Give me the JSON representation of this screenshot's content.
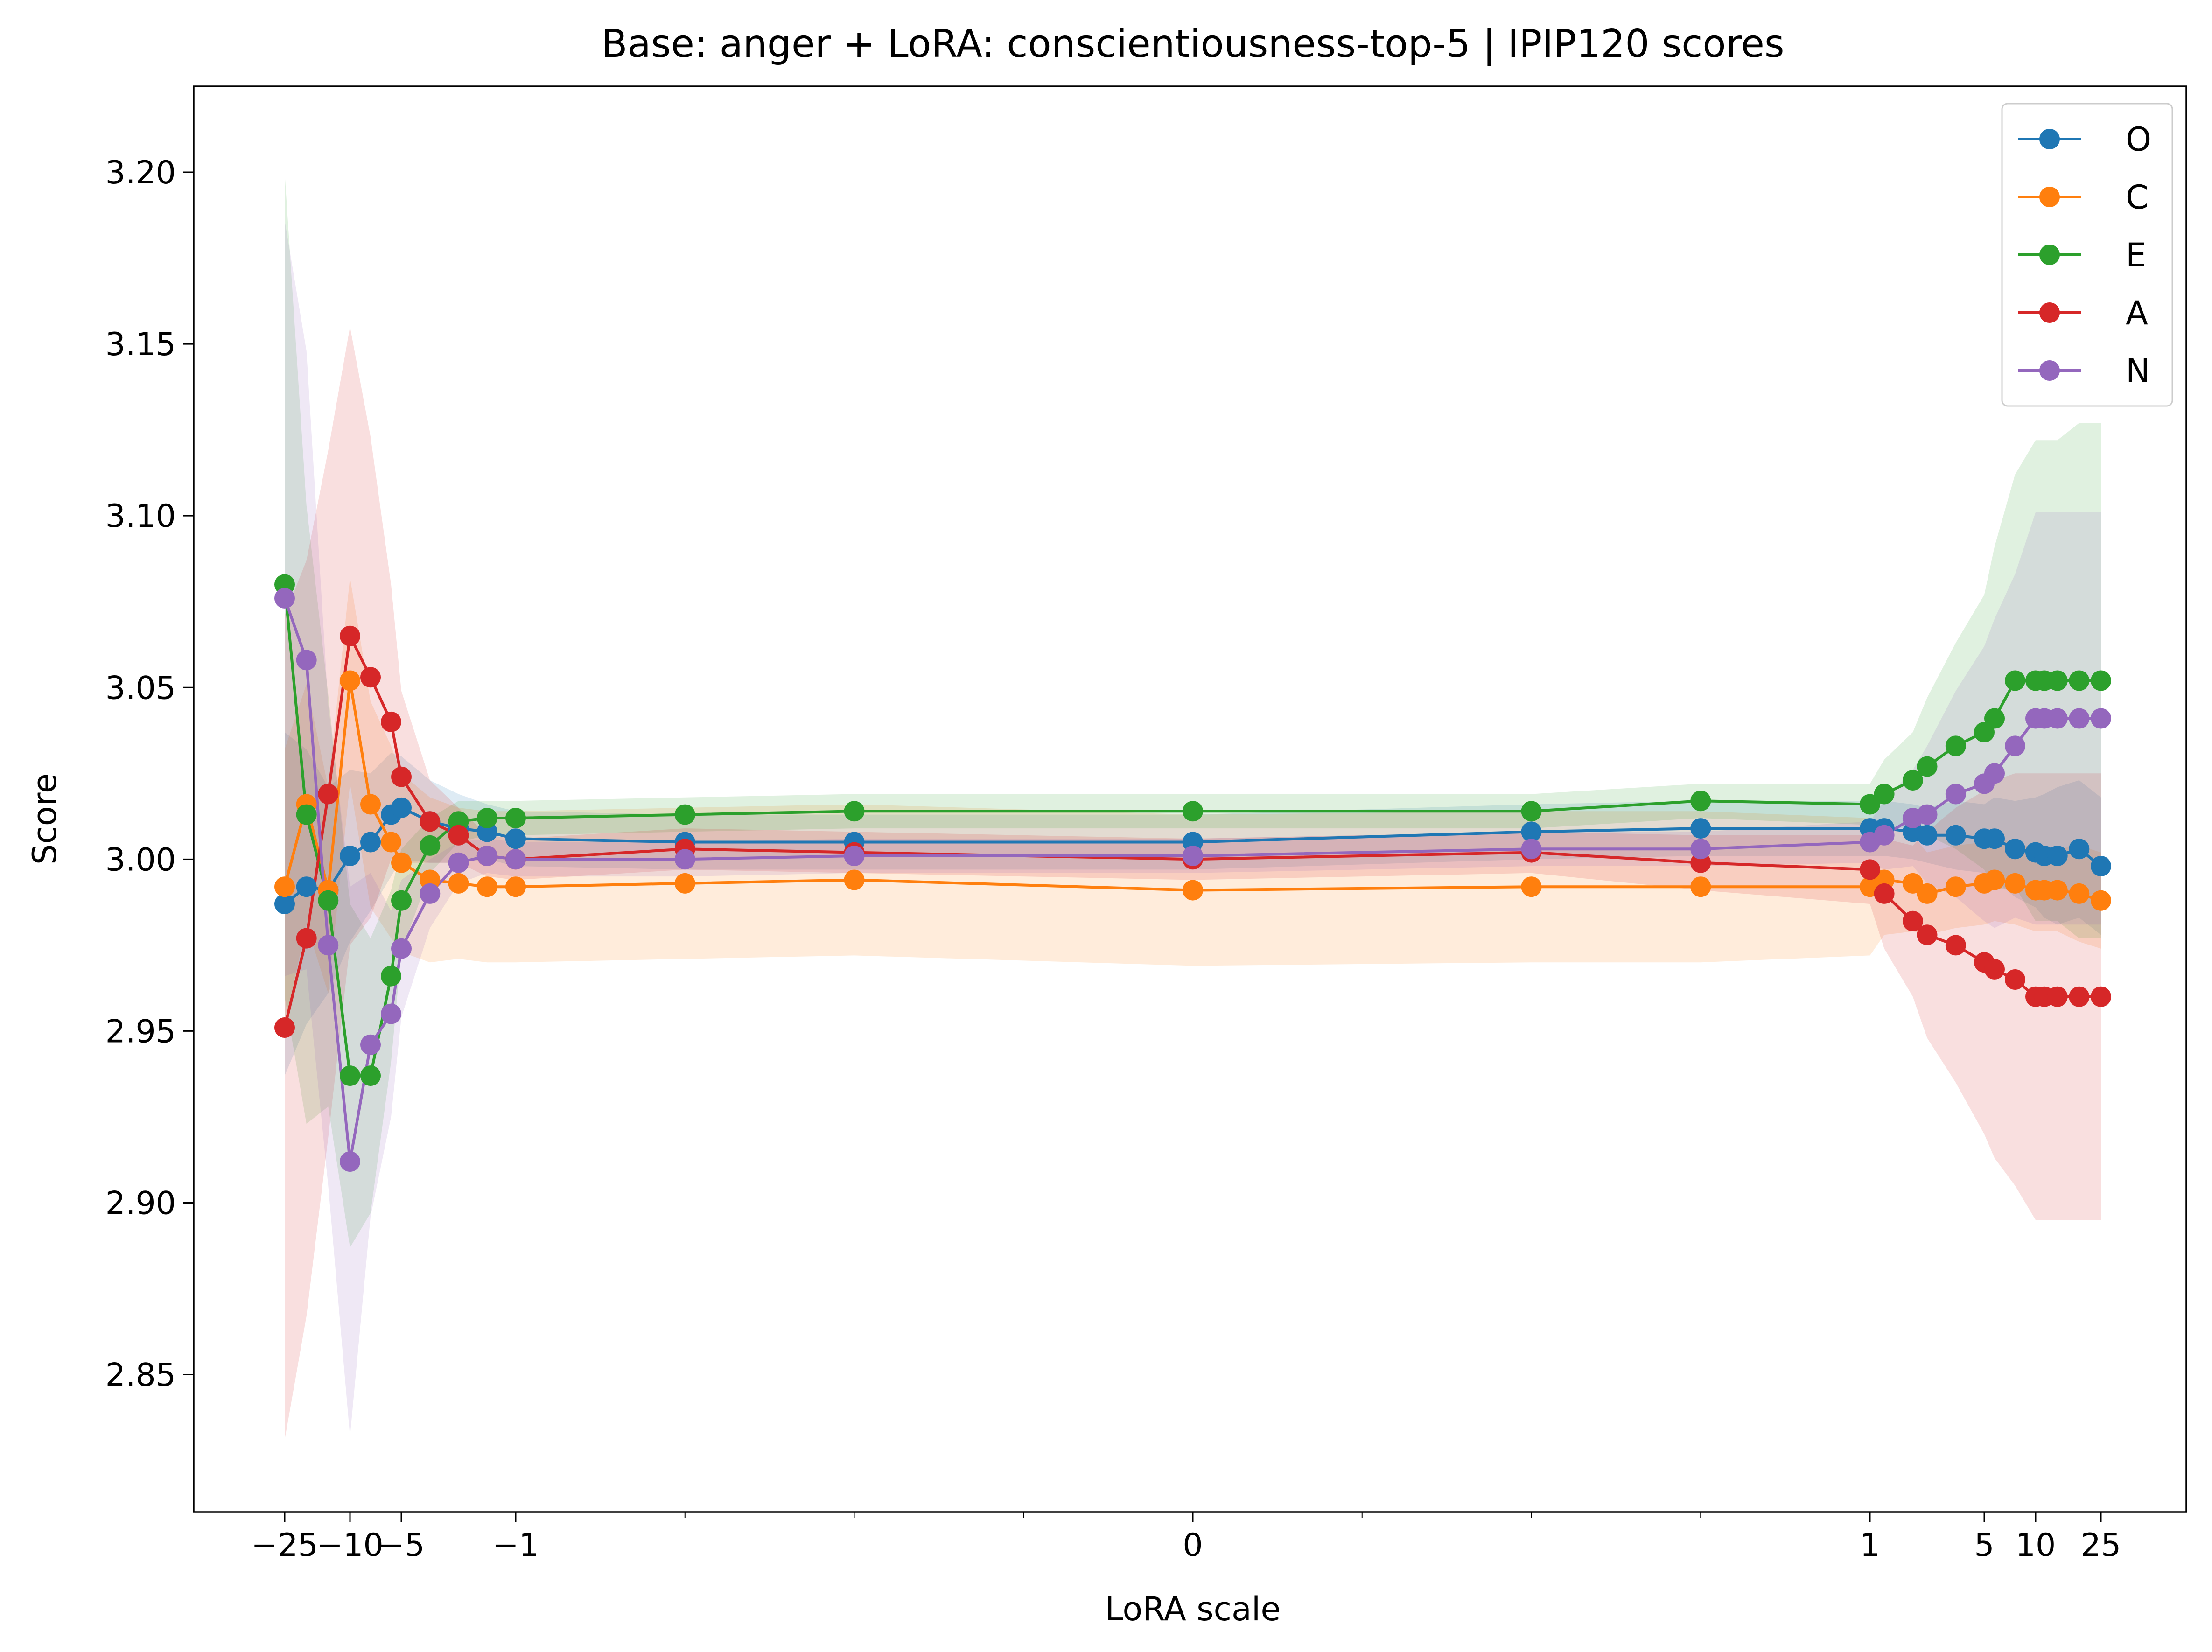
{
  "chart_data": {
    "type": "line",
    "title": "Base: anger + LoRA: conscientiousness-top-5 | IPIP120 scores",
    "xlabel": "LoRA scale",
    "ylabel": "Score",
    "x_scale": "symlog",
    "x_tick_labels": [
      "−25",
      "−10",
      "−5",
      "−1",
      "0",
      "1",
      "5",
      "10",
      "25"
    ],
    "ylim": [
      2.81,
      3.225
    ],
    "y_ticks": [
      "2.85",
      "2.90",
      "2.95",
      "3.00",
      "3.05",
      "3.10",
      "3.15",
      "3.20"
    ],
    "legend_position": "top-right",
    "grid": false,
    "x": [
      -25,
      -20,
      -15,
      -10,
      -8,
      -6,
      -5,
      -4,
      -3,
      -2,
      -1,
      -0.75,
      -0.5,
      0,
      0.5,
      0.75,
      1,
      1.5,
      2.5,
      3,
      4,
      5,
      6,
      8,
      10,
      12,
      15,
      20,
      25
    ],
    "series": [
      {
        "name": "O",
        "color": "#1f77b4",
        "values": [
          2.987,
          2.992,
          2.991,
          3.001,
          3.005,
          3.013,
          3.015,
          3.011,
          3.009,
          3.008,
          3.006,
          3.005,
          3.005,
          3.005,
          3.008,
          3.009,
          3.009,
          3.009,
          3.008,
          3.007,
          3.007,
          3.006,
          3.006,
          3.003,
          3.002,
          3.001,
          3.001,
          3.003,
          2.998
        ],
        "band": [
          0.05,
          0.04,
          0.03,
          0.025,
          0.02,
          0.018,
          0.015,
          0.012,
          0.01,
          0.008,
          0.008,
          0.008,
          0.008,
          0.008,
          0.008,
          0.008,
          0.008,
          0.008,
          0.008,
          0.008,
          0.01,
          0.01,
          0.012,
          0.014,
          0.016,
          0.018,
          0.02,
          0.02,
          0.02
        ]
      },
      {
        "name": "C",
        "color": "#ff7f0e",
        "values": [
          2.992,
          3.016,
          2.991,
          3.052,
          3.016,
          3.005,
          2.999,
          2.994,
          2.993,
          2.992,
          2.992,
          2.993,
          2.994,
          2.991,
          2.992,
          2.992,
          2.992,
          2.994,
          2.993,
          2.99,
          2.992,
          2.993,
          2.994,
          2.993,
          2.991,
          2.991,
          2.991,
          2.99,
          2.988
        ],
        "band": [
          0.04,
          0.035,
          0.03,
          0.03,
          0.03,
          0.028,
          0.026,
          0.024,
          0.022,
          0.022,
          0.022,
          0.022,
          0.022,
          0.022,
          0.022,
          0.022,
          0.02,
          0.016,
          0.014,
          0.012,
          0.012,
          0.012,
          0.012,
          0.012,
          0.012,
          0.012,
          0.012,
          0.014,
          0.014
        ]
      },
      {
        "name": "E",
        "color": "#2ca02c",
        "values": [
          3.08,
          3.013,
          2.988,
          2.937,
          2.937,
          2.966,
          2.988,
          3.004,
          3.011,
          3.012,
          3.012,
          3.013,
          3.014,
          3.014,
          3.014,
          3.017,
          3.016,
          3.019,
          3.023,
          3.027,
          3.033,
          3.037,
          3.041,
          3.052,
          3.052,
          3.052,
          3.052,
          3.052,
          3.052
        ],
        "band": [
          0.12,
          0.09,
          0.06,
          0.05,
          0.04,
          0.025,
          0.015,
          0.008,
          0.006,
          0.005,
          0.005,
          0.005,
          0.005,
          0.005,
          0.005,
          0.005,
          0.006,
          0.01,
          0.014,
          0.02,
          0.03,
          0.04,
          0.05,
          0.06,
          0.07,
          0.07,
          0.07,
          0.075,
          0.075
        ]
      },
      {
        "name": "A",
        "color": "#d62728",
        "values": [
          2.951,
          2.977,
          3.019,
          3.065,
          3.053,
          3.04,
          3.024,
          3.011,
          3.007,
          3.001,
          3.0,
          3.003,
          3.002,
          3.0,
          3.002,
          2.999,
          2.997,
          2.99,
          2.982,
          2.978,
          2.975,
          2.97,
          2.968,
          2.965,
          2.96,
          2.96,
          2.96,
          2.96,
          2.96
        ],
        "band": [
          0.12,
          0.11,
          0.1,
          0.09,
          0.07,
          0.04,
          0.025,
          0.012,
          0.008,
          0.006,
          0.006,
          0.006,
          0.006,
          0.006,
          0.006,
          0.008,
          0.01,
          0.016,
          0.022,
          0.03,
          0.04,
          0.05,
          0.055,
          0.06,
          0.065,
          0.065,
          0.065,
          0.065,
          0.065
        ]
      },
      {
        "name": "N",
        "color": "#9467bd",
        "values": [
          3.076,
          3.058,
          2.975,
          2.912,
          2.946,
          2.955,
          2.974,
          2.99,
          2.999,
          3.001,
          3.0,
          3.0,
          3.001,
          3.001,
          3.003,
          3.003,
          3.005,
          3.007,
          3.012,
          3.013,
          3.019,
          3.022,
          3.025,
          3.033,
          3.041,
          3.041,
          3.041,
          3.041,
          3.041
        ],
        "band": [
          0.11,
          0.09,
          0.07,
          0.08,
          0.05,
          0.03,
          0.02,
          0.01,
          0.006,
          0.005,
          0.005,
          0.005,
          0.005,
          0.005,
          0.005,
          0.005,
          0.006,
          0.01,
          0.014,
          0.02,
          0.03,
          0.04,
          0.045,
          0.05,
          0.06,
          0.06,
          0.06,
          0.06,
          0.06
        ]
      }
    ]
  }
}
